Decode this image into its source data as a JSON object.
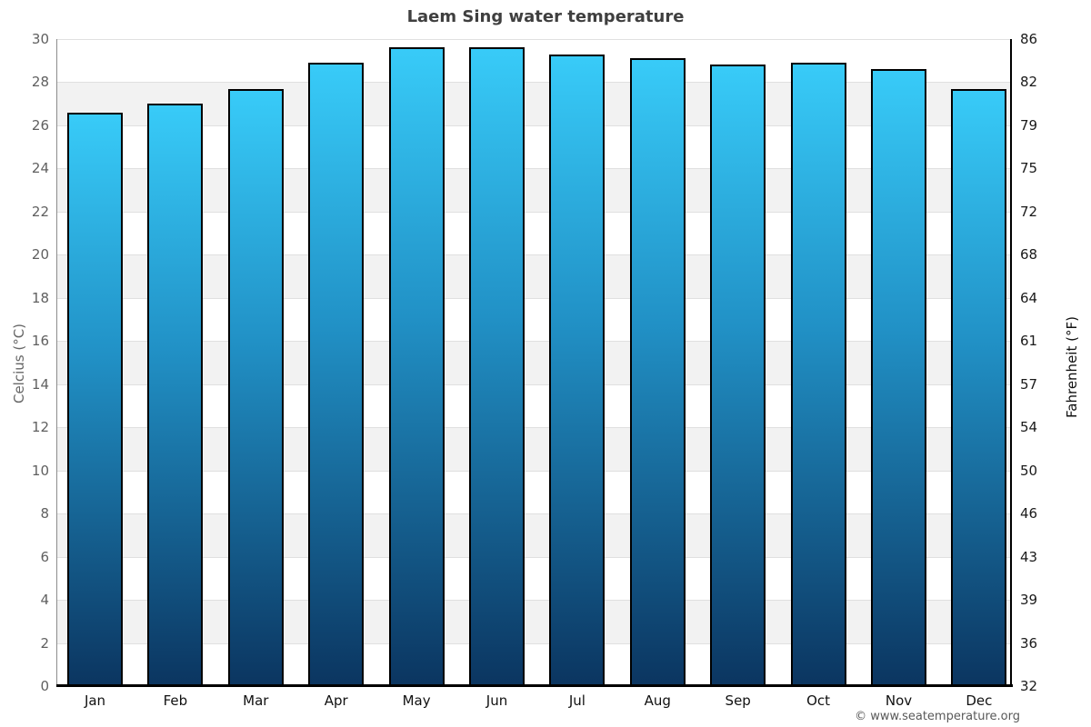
{
  "page": {
    "footer": "© www.seatemperature.org"
  },
  "chart_data": {
    "type": "bar",
    "title": "Laem Sing water temperature",
    "categories": [
      "Jan",
      "Feb",
      "Mar",
      "Apr",
      "May",
      "Jun",
      "Jul",
      "Aug",
      "Sep",
      "Oct",
      "Nov",
      "Dec"
    ],
    "values": [
      26.6,
      27.0,
      27.7,
      28.9,
      29.6,
      29.6,
      29.3,
      29.1,
      28.8,
      28.9,
      28.6,
      27.7
    ],
    "ylabel_left": "Celcius (°C)",
    "ylabel_right": "Fahrenheit (°F)",
    "ylim_left": [
      0,
      30
    ],
    "yticks_left": [
      0,
      2,
      4,
      6,
      8,
      10,
      12,
      14,
      16,
      18,
      20,
      22,
      24,
      26,
      28,
      30
    ],
    "yticks_right": [
      32,
      36,
      39,
      43,
      46,
      50,
      54,
      57,
      61,
      64,
      68,
      72,
      75,
      79,
      82,
      86
    ],
    "legend": "none",
    "grid": "alternating-horizontal-bands"
  },
  "colors": {
    "bar_gradient_top": "#38cbf8",
    "bar_gradient_mid": "#2191c6",
    "bar_gradient_bottom": "#0b3560",
    "bar_border": "#000000",
    "band_alt": "#f2f2f2",
    "band_base": "#ffffff",
    "gridline": "#e0e0e0",
    "left_axis_text": "#606060",
    "right_axis_text": "#1a1a1a",
    "title_text": "#3f3f3f",
    "footer_text": "#595959"
  }
}
